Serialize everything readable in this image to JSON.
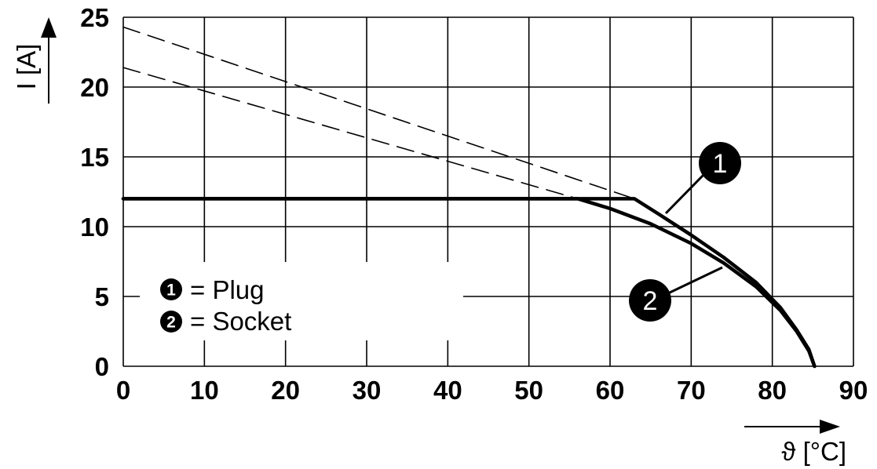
{
  "chart_data": {
    "type": "line",
    "xlabel": "ϑ [°C]",
    "ylabel": "I [A]",
    "xlim": [
      0,
      90
    ],
    "ylim": [
      0,
      25
    ],
    "xticks": [
      "0",
      "10",
      "20",
      "30",
      "40",
      "50",
      "60",
      "70",
      "80",
      "90"
    ],
    "yticks": [
      "0",
      "5",
      "10",
      "15",
      "20",
      "25"
    ],
    "grid": true,
    "series": [
      {
        "name": "Plug",
        "marker": "1",
        "style": "solid",
        "x": [
          0,
          63,
          66,
          70,
          74,
          78,
          81,
          83,
          84.5,
          85.2
        ],
        "y": [
          12,
          12,
          10.9,
          9.4,
          7.8,
          6.0,
          4.2,
          2.6,
          1.2,
          0
        ]
      },
      {
        "name": "Socket",
        "marker": "2",
        "style": "solid",
        "x": [
          0,
          56,
          60,
          65,
          70,
          74,
          78,
          81,
          83,
          84.5,
          85.2
        ],
        "y": [
          12,
          12,
          11.3,
          10.2,
          8.8,
          7.4,
          5.7,
          4.0,
          2.5,
          1.1,
          0
        ]
      },
      {
        "name": "",
        "style": "dashed",
        "x": [
          0,
          63
        ],
        "y": [
          24.3,
          12
        ]
      },
      {
        "name": "",
        "style": "dashed",
        "x": [
          0,
          56
        ],
        "y": [
          21.4,
          12
        ]
      }
    ],
    "legend": {
      "position": "bottom-left",
      "items": [
        {
          "marker": "1",
          "label": "= Plug"
        },
        {
          "marker": "2",
          "label": "= Socket"
        }
      ]
    }
  }
}
